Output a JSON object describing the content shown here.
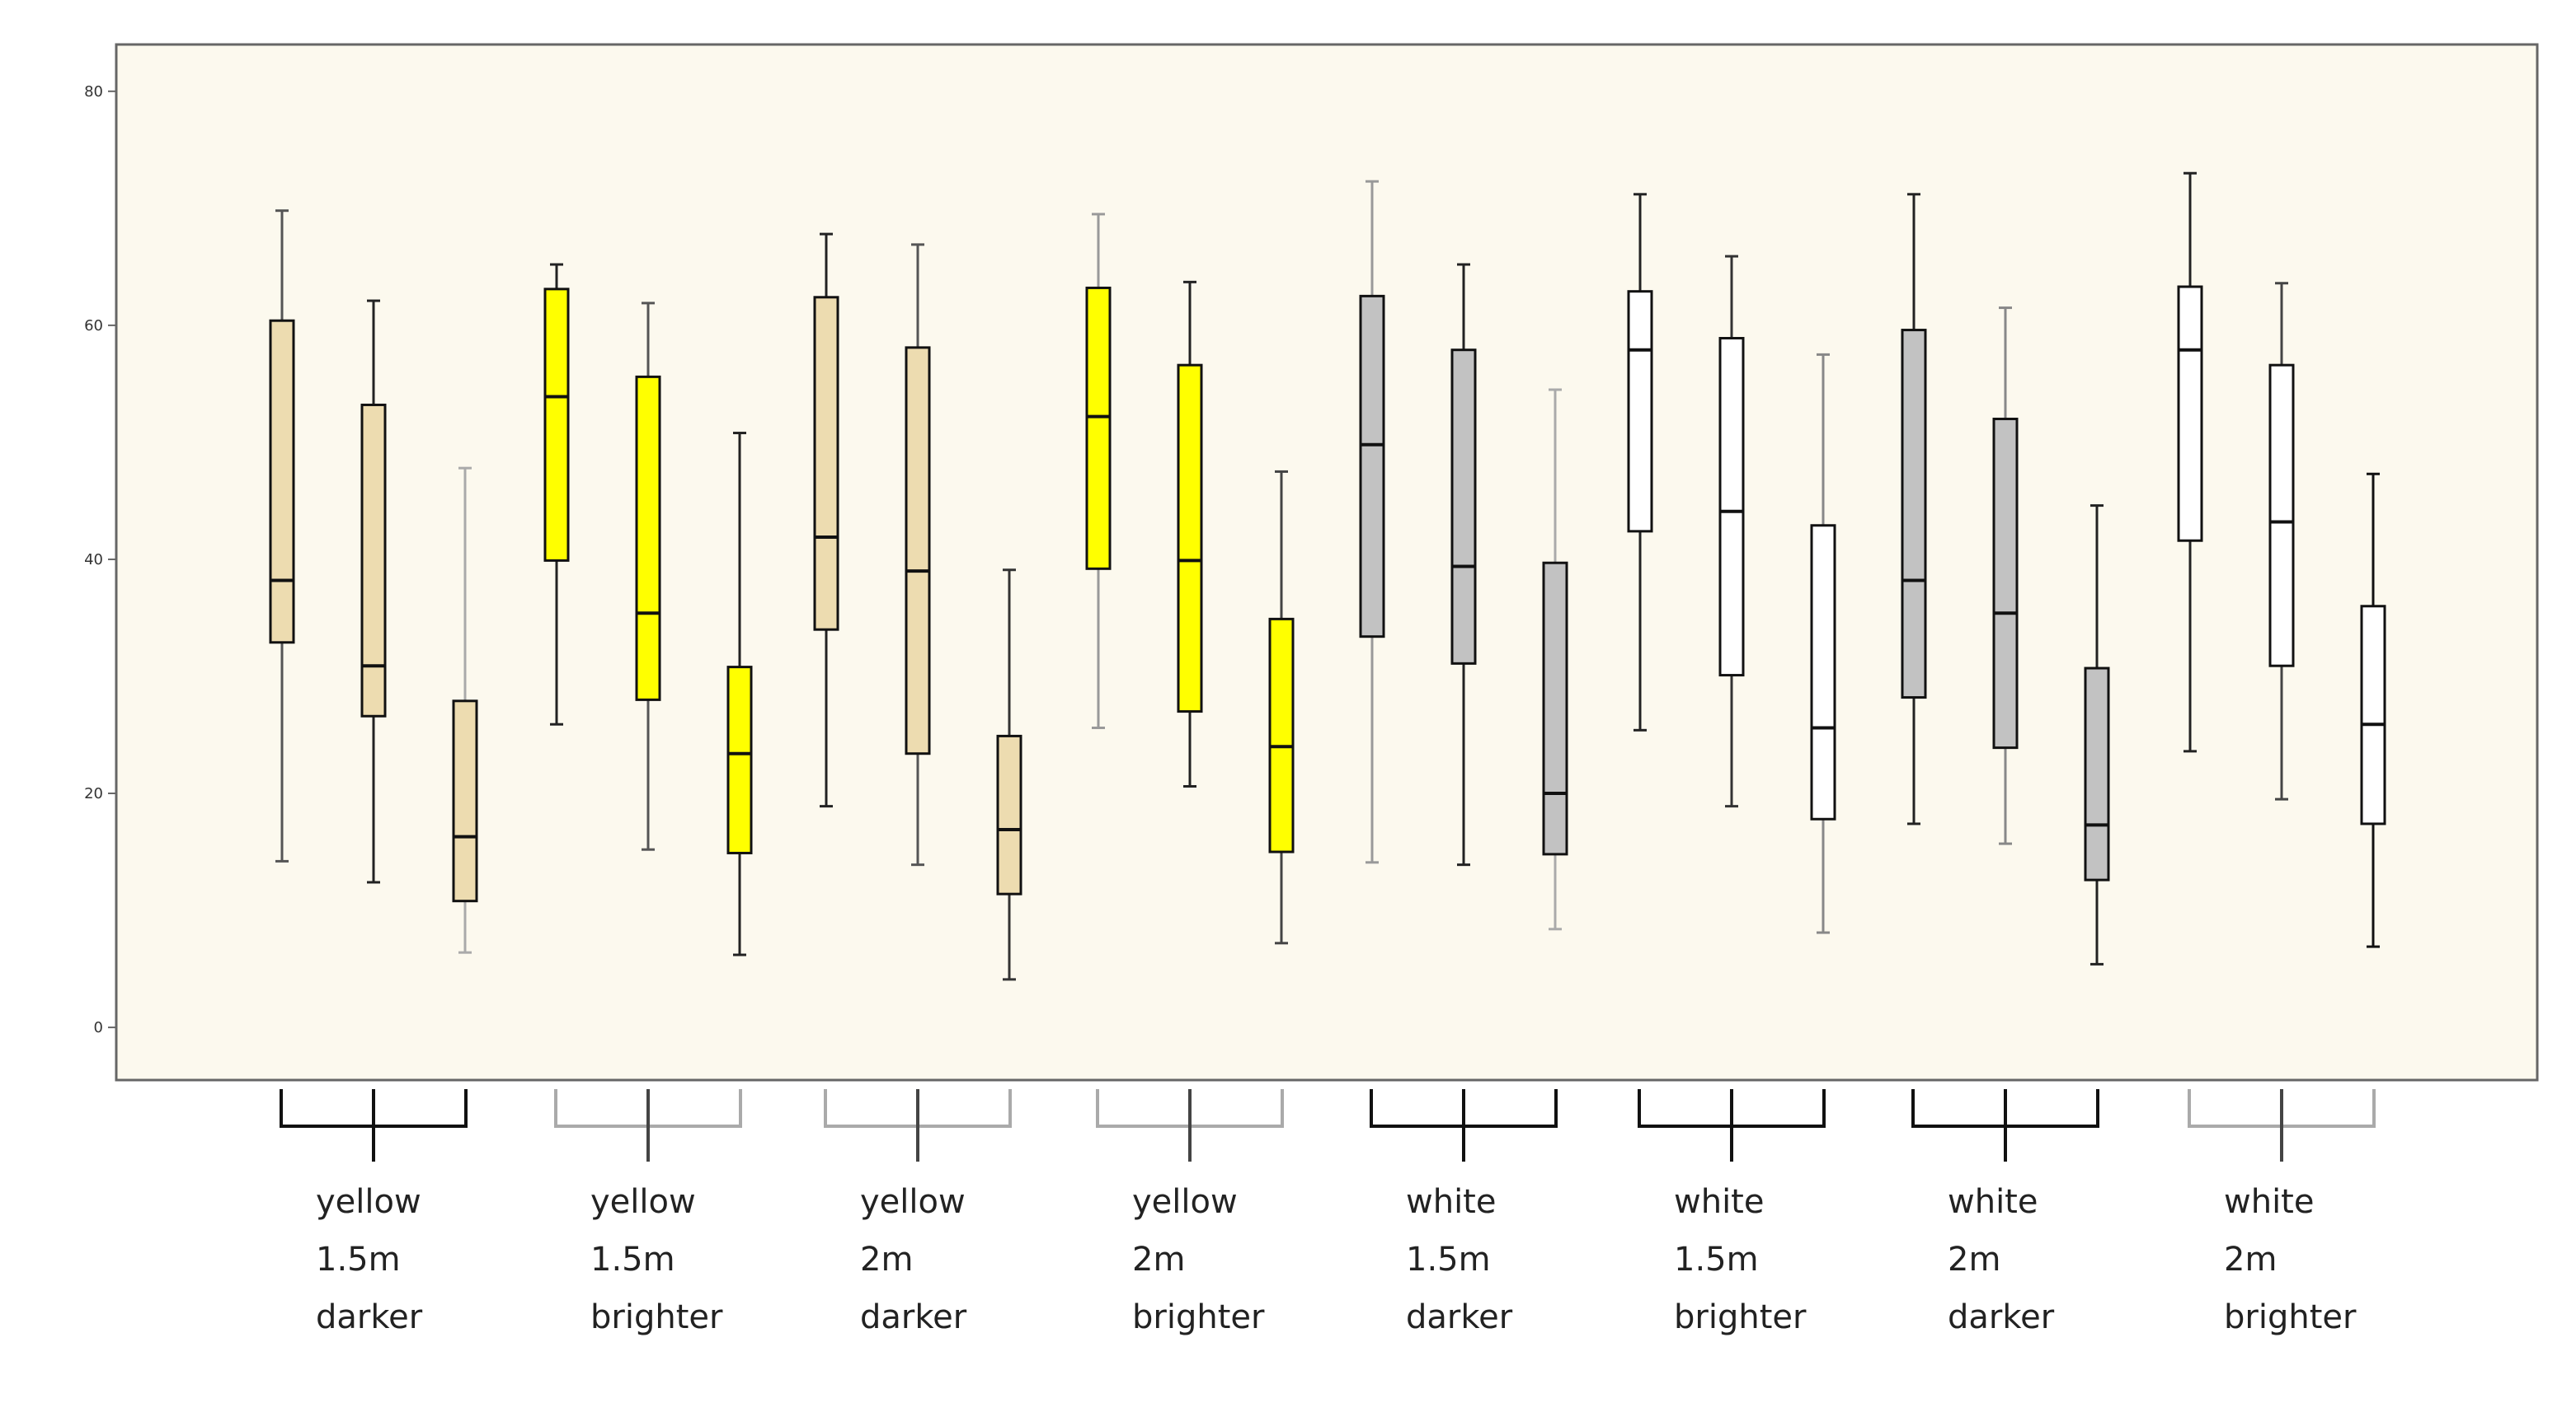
{
  "chart_data": {
    "type": "boxplot",
    "title": "",
    "xlabel": "",
    "ylabel": "",
    "ylim": [
      -4.5,
      84
    ],
    "yticks": [
      0,
      20,
      40,
      60,
      80
    ],
    "plot_background": "#fcf9ee",
    "groups": [
      {
        "label_lines": [
          "yellow",
          "1.5m",
          "darker"
        ],
        "bracket_style": "dark"
      },
      {
        "label_lines": [
          "yellow",
          "1.5m",
          "brighter"
        ],
        "bracket_style": "light"
      },
      {
        "label_lines": [
          "yellow",
          "2m",
          "darker"
        ],
        "bracket_style": "light"
      },
      {
        "label_lines": [
          "yellow",
          "2m",
          "brighter"
        ],
        "bracket_style": "light"
      },
      {
        "label_lines": [
          "white",
          "1.5m",
          "darker"
        ],
        "bracket_style": "dark"
      },
      {
        "label_lines": [
          "white",
          "1.5m",
          "brighter"
        ],
        "bracket_style": "dark"
      },
      {
        "label_lines": [
          "white",
          "2m",
          "darker"
        ],
        "bracket_style": "dark"
      },
      {
        "label_lines": [
          "white",
          "2m",
          "brighter"
        ],
        "bracket_style": "light"
      }
    ],
    "boxes": [
      {
        "group": 0,
        "fill": "#eddcb0",
        "whisker_color": "#555555",
        "min": 14.2,
        "q1": 32.9,
        "median": 38.2,
        "q3": 60.4,
        "max": 69.8
      },
      {
        "group": 0,
        "fill": "#eddcb0",
        "whisker_color": "#222222",
        "min": 12.4,
        "q1": 26.6,
        "median": 30.9,
        "q3": 53.2,
        "max": 62.1
      },
      {
        "group": 0,
        "fill": "#eddcb0",
        "whisker_color": "#aaaaaa",
        "min": 6.4,
        "q1": 10.8,
        "median": 16.3,
        "q3": 27.9,
        "max": 47.8
      },
      {
        "group": 1,
        "fill": "#ffff00",
        "whisker_color": "#222222",
        "min": 25.9,
        "q1": 39.9,
        "median": 53.9,
        "q3": 63.1,
        "max": 65.2
      },
      {
        "group": 1,
        "fill": "#ffff00",
        "whisker_color": "#555555",
        "min": 15.2,
        "q1": 28.0,
        "median": 35.4,
        "q3": 55.6,
        "max": 61.9
      },
      {
        "group": 1,
        "fill": "#ffff00",
        "whisker_color": "#222222",
        "min": 6.2,
        "q1": 14.9,
        "median": 23.4,
        "q3": 30.8,
        "max": 50.8
      },
      {
        "group": 2,
        "fill": "#eddcb0",
        "whisker_color": "#222222",
        "min": 18.9,
        "q1": 34.0,
        "median": 41.9,
        "q3": 62.4,
        "max": 67.8
      },
      {
        "group": 2,
        "fill": "#eddcb0",
        "whisker_color": "#555555",
        "min": 13.9,
        "q1": 23.4,
        "median": 39.0,
        "q3": 58.1,
        "max": 66.9
      },
      {
        "group": 2,
        "fill": "#eddcb0",
        "whisker_color": "#333333",
        "min": 4.1,
        "q1": 11.4,
        "median": 16.9,
        "q3": 24.9,
        "max": 39.1
      },
      {
        "group": 3,
        "fill": "#ffff00",
        "whisker_color": "#999999",
        "min": 25.6,
        "q1": 39.2,
        "median": 52.2,
        "q3": 63.2,
        "max": 69.5
      },
      {
        "group": 3,
        "fill": "#ffff00",
        "whisker_color": "#222222",
        "min": 20.6,
        "q1": 27.0,
        "median": 39.9,
        "q3": 56.6,
        "max": 63.7
      },
      {
        "group": 3,
        "fill": "#ffff00",
        "whisker_color": "#444444",
        "min": 7.2,
        "q1": 15.0,
        "median": 24.0,
        "q3": 34.9,
        "max": 47.5
      },
      {
        "group": 4,
        "fill": "#c2c2c2",
        "whisker_color": "#999999",
        "min": 14.1,
        "q1": 33.4,
        "median": 49.8,
        "q3": 62.5,
        "max": 72.3
      },
      {
        "group": 4,
        "fill": "#c2c2c2",
        "whisker_color": "#222222",
        "min": 13.9,
        "q1": 31.1,
        "median": 39.4,
        "q3": 57.9,
        "max": 65.2
      },
      {
        "group": 4,
        "fill": "#c2c2c2",
        "whisker_color": "#aaaaaa",
        "min": 8.4,
        "q1": 14.8,
        "median": 20.0,
        "q3": 39.7,
        "max": 54.5
      },
      {
        "group": 5,
        "fill": "#ffffff",
        "whisker_color": "#222222",
        "min": 25.4,
        "q1": 42.4,
        "median": 57.9,
        "q3": 62.9,
        "max": 71.2
      },
      {
        "group": 5,
        "fill": "#ffffff",
        "whisker_color": "#333333",
        "min": 18.9,
        "q1": 30.1,
        "median": 44.1,
        "q3": 58.9,
        "max": 65.9
      },
      {
        "group": 5,
        "fill": "#ffffff",
        "whisker_color": "#888888",
        "min": 8.1,
        "q1": 17.8,
        "median": 25.6,
        "q3": 42.9,
        "max": 57.5
      },
      {
        "group": 6,
        "fill": "#c2c2c2",
        "whisker_color": "#222222",
        "min": 17.4,
        "q1": 28.2,
        "median": 38.2,
        "q3": 59.6,
        "max": 71.2
      },
      {
        "group": 6,
        "fill": "#c2c2c2",
        "whisker_color": "#888888",
        "min": 15.7,
        "q1": 23.9,
        "median": 35.4,
        "q3": 52.0,
        "max": 61.5
      },
      {
        "group": 6,
        "fill": "#c2c2c2",
        "whisker_color": "#222222",
        "min": 5.4,
        "q1": 12.6,
        "median": 17.3,
        "q3": 30.7,
        "max": 44.6
      },
      {
        "group": 7,
        "fill": "#ffffff",
        "whisker_color": "#222222",
        "min": 23.6,
        "q1": 41.6,
        "median": 57.9,
        "q3": 63.3,
        "max": 73.0
      },
      {
        "group": 7,
        "fill": "#ffffff",
        "whisker_color": "#444444",
        "min": 19.5,
        "q1": 30.9,
        "median": 43.2,
        "q3": 56.6,
        "max": 63.6
      },
      {
        "group": 7,
        "fill": "#ffffff",
        "whisker_color": "#111111",
        "min": 6.9,
        "q1": 17.4,
        "median": 25.9,
        "q3": 36.0,
        "max": 47.3
      }
    ]
  }
}
